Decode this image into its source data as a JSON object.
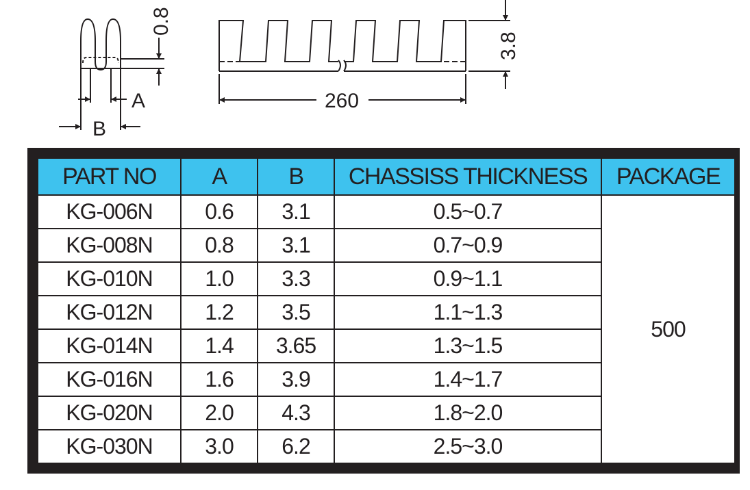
{
  "drawing": {
    "dim_top": "0.8",
    "dim_height": "3.8",
    "dim_length": "260",
    "label_a": "A",
    "label_b": "B"
  },
  "table": {
    "headers": {
      "part_no": "PART NO",
      "a": "A",
      "b": "B",
      "thickness": "CHASSISS THICKNESS",
      "package": "PACKAGE"
    },
    "rows": [
      {
        "part": "KG-006N",
        "a": "0.6",
        "b": "3.1",
        "thickness": "0.5~0.7"
      },
      {
        "part": "KG-008N",
        "a": "0.8",
        "b": "3.1",
        "thickness": "0.7~0.9"
      },
      {
        "part": "KG-010N",
        "a": "1.0",
        "b": "3.3",
        "thickness": "0.9~1.1"
      },
      {
        "part": "KG-012N",
        "a": "1.2",
        "b": "3.5",
        "thickness": "1.1~1.3"
      },
      {
        "part": "KG-014N",
        "a": "1.4",
        "b": "3.65",
        "thickness": "1.3~1.5"
      },
      {
        "part": "KG-016N",
        "a": "1.6",
        "b": "3.9",
        "thickness": "1.4~1.7"
      },
      {
        "part": "KG-020N",
        "a": "2.0",
        "b": "4.3",
        "thickness": "1.8~2.0"
      },
      {
        "part": "KG-030N",
        "a": "3.0",
        "b": "6.2",
        "thickness": "2.5~3.0"
      }
    ],
    "package": "500"
  },
  "colors": {
    "header_bg": "#3ec2ee",
    "line": "#231f20"
  }
}
